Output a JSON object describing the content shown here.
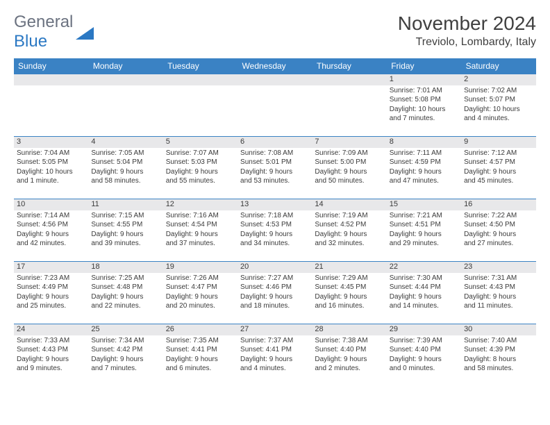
{
  "logo": {
    "word1": "General",
    "word2": "Blue"
  },
  "title": "November 2024",
  "location": "Treviolo, Lombardy, Italy",
  "colors": {
    "header_bg": "#3a82c4",
    "header_text": "#ffffff",
    "daynum_bg": "#e8e8ea",
    "rule": "#3a82c4",
    "text": "#3a3a3a",
    "logo_gray": "#6b7280",
    "logo_blue": "#2b78c3"
  },
  "weekdays": [
    "Sunday",
    "Monday",
    "Tuesday",
    "Wednesday",
    "Thursday",
    "Friday",
    "Saturday"
  ],
  "weeks": [
    [
      null,
      null,
      null,
      null,
      null,
      {
        "n": "1",
        "sr": "Sunrise: 7:01 AM",
        "ss": "Sunset: 5:08 PM",
        "dl1": "Daylight: 10 hours",
        "dl2": "and 7 minutes."
      },
      {
        "n": "2",
        "sr": "Sunrise: 7:02 AM",
        "ss": "Sunset: 5:07 PM",
        "dl1": "Daylight: 10 hours",
        "dl2": "and 4 minutes."
      }
    ],
    [
      {
        "n": "3",
        "sr": "Sunrise: 7:04 AM",
        "ss": "Sunset: 5:05 PM",
        "dl1": "Daylight: 10 hours",
        "dl2": "and 1 minute."
      },
      {
        "n": "4",
        "sr": "Sunrise: 7:05 AM",
        "ss": "Sunset: 5:04 PM",
        "dl1": "Daylight: 9 hours",
        "dl2": "and 58 minutes."
      },
      {
        "n": "5",
        "sr": "Sunrise: 7:07 AM",
        "ss": "Sunset: 5:03 PM",
        "dl1": "Daylight: 9 hours",
        "dl2": "and 55 minutes."
      },
      {
        "n": "6",
        "sr": "Sunrise: 7:08 AM",
        "ss": "Sunset: 5:01 PM",
        "dl1": "Daylight: 9 hours",
        "dl2": "and 53 minutes."
      },
      {
        "n": "7",
        "sr": "Sunrise: 7:09 AM",
        "ss": "Sunset: 5:00 PM",
        "dl1": "Daylight: 9 hours",
        "dl2": "and 50 minutes."
      },
      {
        "n": "8",
        "sr": "Sunrise: 7:11 AM",
        "ss": "Sunset: 4:59 PM",
        "dl1": "Daylight: 9 hours",
        "dl2": "and 47 minutes."
      },
      {
        "n": "9",
        "sr": "Sunrise: 7:12 AM",
        "ss": "Sunset: 4:57 PM",
        "dl1": "Daylight: 9 hours",
        "dl2": "and 45 minutes."
      }
    ],
    [
      {
        "n": "10",
        "sr": "Sunrise: 7:14 AM",
        "ss": "Sunset: 4:56 PM",
        "dl1": "Daylight: 9 hours",
        "dl2": "and 42 minutes."
      },
      {
        "n": "11",
        "sr": "Sunrise: 7:15 AM",
        "ss": "Sunset: 4:55 PM",
        "dl1": "Daylight: 9 hours",
        "dl2": "and 39 minutes."
      },
      {
        "n": "12",
        "sr": "Sunrise: 7:16 AM",
        "ss": "Sunset: 4:54 PM",
        "dl1": "Daylight: 9 hours",
        "dl2": "and 37 minutes."
      },
      {
        "n": "13",
        "sr": "Sunrise: 7:18 AM",
        "ss": "Sunset: 4:53 PM",
        "dl1": "Daylight: 9 hours",
        "dl2": "and 34 minutes."
      },
      {
        "n": "14",
        "sr": "Sunrise: 7:19 AM",
        "ss": "Sunset: 4:52 PM",
        "dl1": "Daylight: 9 hours",
        "dl2": "and 32 minutes."
      },
      {
        "n": "15",
        "sr": "Sunrise: 7:21 AM",
        "ss": "Sunset: 4:51 PM",
        "dl1": "Daylight: 9 hours",
        "dl2": "and 29 minutes."
      },
      {
        "n": "16",
        "sr": "Sunrise: 7:22 AM",
        "ss": "Sunset: 4:50 PM",
        "dl1": "Daylight: 9 hours",
        "dl2": "and 27 minutes."
      }
    ],
    [
      {
        "n": "17",
        "sr": "Sunrise: 7:23 AM",
        "ss": "Sunset: 4:49 PM",
        "dl1": "Daylight: 9 hours",
        "dl2": "and 25 minutes."
      },
      {
        "n": "18",
        "sr": "Sunrise: 7:25 AM",
        "ss": "Sunset: 4:48 PM",
        "dl1": "Daylight: 9 hours",
        "dl2": "and 22 minutes."
      },
      {
        "n": "19",
        "sr": "Sunrise: 7:26 AM",
        "ss": "Sunset: 4:47 PM",
        "dl1": "Daylight: 9 hours",
        "dl2": "and 20 minutes."
      },
      {
        "n": "20",
        "sr": "Sunrise: 7:27 AM",
        "ss": "Sunset: 4:46 PM",
        "dl1": "Daylight: 9 hours",
        "dl2": "and 18 minutes."
      },
      {
        "n": "21",
        "sr": "Sunrise: 7:29 AM",
        "ss": "Sunset: 4:45 PM",
        "dl1": "Daylight: 9 hours",
        "dl2": "and 16 minutes."
      },
      {
        "n": "22",
        "sr": "Sunrise: 7:30 AM",
        "ss": "Sunset: 4:44 PM",
        "dl1": "Daylight: 9 hours",
        "dl2": "and 14 minutes."
      },
      {
        "n": "23",
        "sr": "Sunrise: 7:31 AM",
        "ss": "Sunset: 4:43 PM",
        "dl1": "Daylight: 9 hours",
        "dl2": "and 11 minutes."
      }
    ],
    [
      {
        "n": "24",
        "sr": "Sunrise: 7:33 AM",
        "ss": "Sunset: 4:43 PM",
        "dl1": "Daylight: 9 hours",
        "dl2": "and 9 minutes."
      },
      {
        "n": "25",
        "sr": "Sunrise: 7:34 AM",
        "ss": "Sunset: 4:42 PM",
        "dl1": "Daylight: 9 hours",
        "dl2": "and 7 minutes."
      },
      {
        "n": "26",
        "sr": "Sunrise: 7:35 AM",
        "ss": "Sunset: 4:41 PM",
        "dl1": "Daylight: 9 hours",
        "dl2": "and 6 minutes."
      },
      {
        "n": "27",
        "sr": "Sunrise: 7:37 AM",
        "ss": "Sunset: 4:41 PM",
        "dl1": "Daylight: 9 hours",
        "dl2": "and 4 minutes."
      },
      {
        "n": "28",
        "sr": "Sunrise: 7:38 AM",
        "ss": "Sunset: 4:40 PM",
        "dl1": "Daylight: 9 hours",
        "dl2": "and 2 minutes."
      },
      {
        "n": "29",
        "sr": "Sunrise: 7:39 AM",
        "ss": "Sunset: 4:40 PM",
        "dl1": "Daylight: 9 hours",
        "dl2": "and 0 minutes."
      },
      {
        "n": "30",
        "sr": "Sunrise: 7:40 AM",
        "ss": "Sunset: 4:39 PM",
        "dl1": "Daylight: 8 hours",
        "dl2": "and 58 minutes."
      }
    ]
  ]
}
